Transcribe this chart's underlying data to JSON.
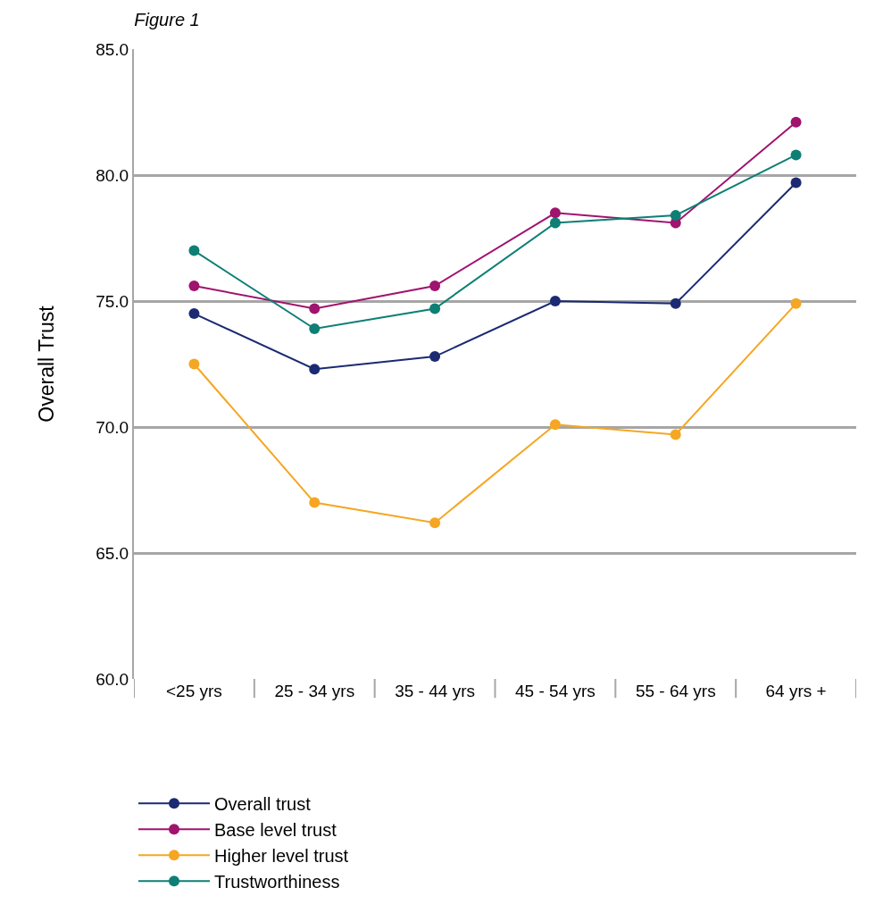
{
  "chart_data": {
    "type": "line",
    "title": "Figure 1",
    "ylabel": "Overall Trust",
    "categories": [
      "<25 yrs",
      "25 - 34 yrs",
      "35 - 44 yrs",
      "45 - 54 yrs",
      "55 - 64 yrs",
      "64 yrs +"
    ],
    "series": [
      {
        "name": "Overall trust",
        "color": "#1b2a72",
        "values": [
          74.5,
          72.3,
          72.8,
          75.0,
          74.9,
          79.7
        ]
      },
      {
        "name": "Base level trust",
        "color": "#a0136e",
        "values": [
          75.6,
          74.7,
          75.6,
          78.5,
          78.1,
          82.1
        ]
      },
      {
        "name": "Higher level trust",
        "color": "#f5a623",
        "values": [
          72.5,
          67.0,
          66.2,
          70.1,
          69.7,
          74.9
        ]
      },
      {
        "name": "Trustworthiness",
        "color": "#0e7f74",
        "values": [
          77.0,
          73.9,
          74.7,
          78.1,
          78.4,
          80.8
        ]
      }
    ],
    "ylim": [
      60,
      85
    ],
    "yticks": [
      {
        "value": 60,
        "label": "60.0"
      },
      {
        "value": 65,
        "label": "65.0"
      },
      {
        "value": 70,
        "label": "70.0"
      },
      {
        "value": 75,
        "label": "75.0"
      },
      {
        "value": 80,
        "label": "80.0"
      },
      {
        "value": 85,
        "label": "85.0"
      }
    ],
    "grid": "y",
    "legend": "bottom left",
    "marker": "circle",
    "line_style": "solid"
  }
}
